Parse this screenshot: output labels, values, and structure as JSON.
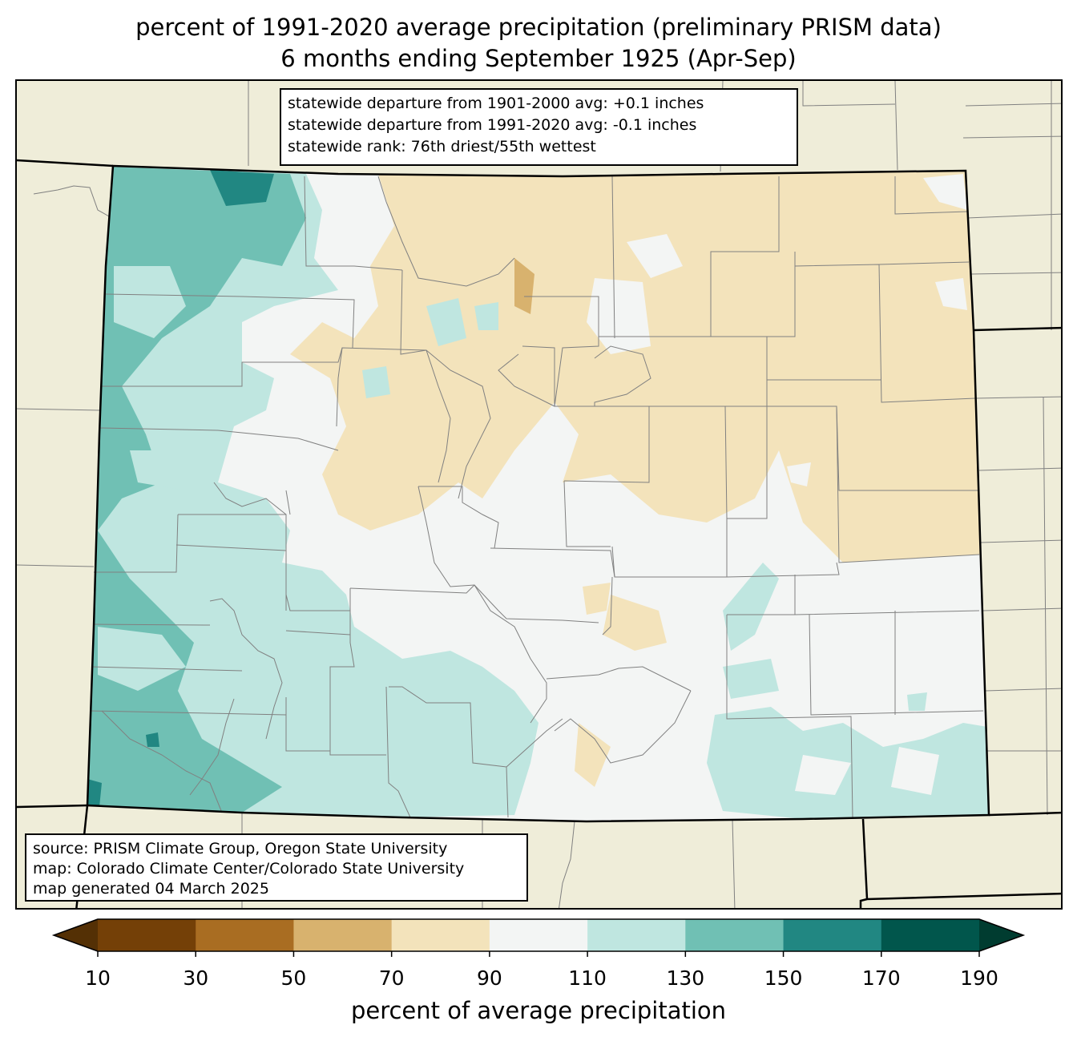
{
  "title": {
    "line1": "percent of 1991-2020 average precipitation (preliminary PRISM data)",
    "line2": "6 months ending September 1925 (Apr-Sep)"
  },
  "stats": [
    "statewide departure from 1901-2000 avg: +0.1 inches",
    "statewide departure from 1991-2020 avg: -0.1 inches",
    "statewide rank: 76th driest/55th wettest"
  ],
  "credits": [
    "source: PRISM Climate Group, Oregon State University",
    "map: Colorado Climate Center/Colorado State University",
    "map generated 04 March 2025"
  ],
  "colorbar": {
    "label": "percent of average precipitation",
    "ticks": [
      "10",
      "30",
      "50",
      "70",
      "90",
      "110",
      "130",
      "150",
      "170",
      "190"
    ],
    "under_color": "#543005",
    "over_color": "#003c30",
    "colors": [
      "#744007",
      "#a96d22",
      "#d8b26e",
      "#f3e3bb",
      "#f3f5f4",
      "#bfe6e0",
      "#70c0b4",
      "#218782",
      "#01564c"
    ]
  },
  "map_colors": {
    "land": "#efedd9",
    "state_border": "#000000",
    "county_border": "#808080"
  }
}
